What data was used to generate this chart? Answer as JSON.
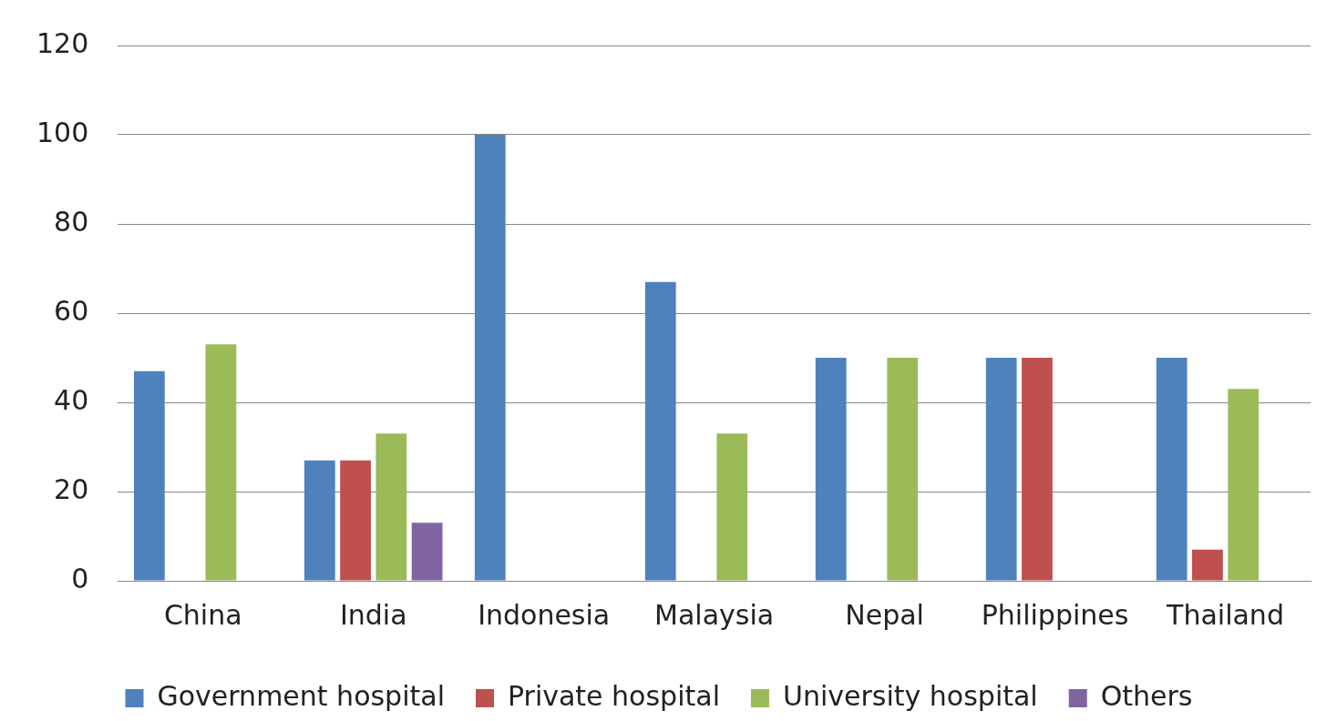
{
  "chart_data": {
    "type": "bar",
    "categories": [
      "China",
      "India",
      "Indonesia",
      "Malaysia",
      "Nepal",
      "Philippines",
      "Thailand"
    ],
    "series": [
      {
        "name": "Government hospital",
        "color": "#4f81bd",
        "values": [
          47,
          27,
          100,
          67,
          50,
          50,
          50
        ]
      },
      {
        "name": "Private hospital",
        "color": "#c0504d",
        "values": [
          null,
          27,
          null,
          null,
          null,
          50,
          7
        ]
      },
      {
        "name": "University hospital",
        "color": "#9bbb59",
        "values": [
          53,
          33,
          null,
          33,
          50,
          null,
          43
        ]
      },
      {
        "name": "Others",
        "color": "#8064a2",
        "values": [
          null,
          13,
          null,
          null,
          null,
          null,
          null
        ]
      }
    ],
    "ylim": [
      0,
      120
    ],
    "yticks": [
      0,
      20,
      40,
      60,
      80,
      100,
      120
    ],
    "grid": "y",
    "legend": "bottom"
  }
}
